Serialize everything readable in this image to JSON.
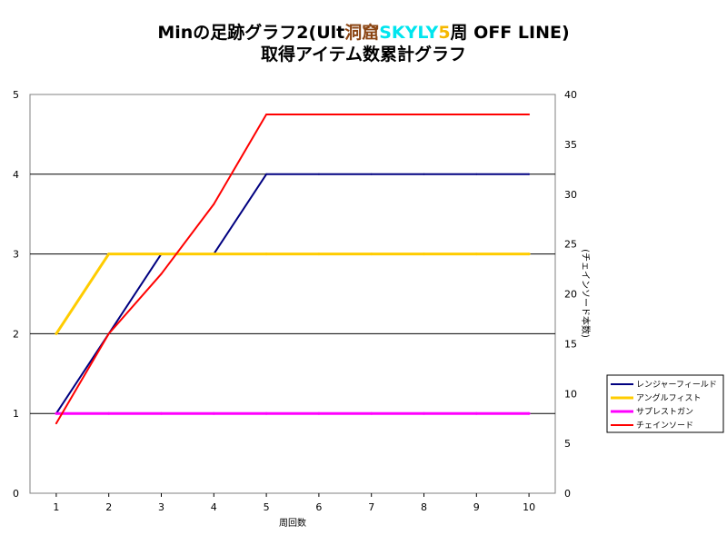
{
  "colors": {
    "title_brown": "#8b4513",
    "title_cyan": "#00e5ee",
    "title_gold": "#f5b800",
    "grid": "#000000",
    "frame": "#808080"
  },
  "chart_data": {
    "type": "line",
    "title": {
      "line1_part1": "Minの足跡グラフ2(Ult",
      "line1_part2": "洞窟",
      "line1_part3": "SKYLY",
      "line1_part4": "5",
      "line1_part5": "周 OFF LINE)",
      "line2": "取得アイテム数累計グラフ"
    },
    "xlabel": "周回数",
    "ylabel_right": "(チェインソード本数)",
    "x": [
      1,
      2,
      3,
      4,
      5,
      6,
      7,
      8,
      9,
      10
    ],
    "xlim": [
      0.5,
      10.5
    ],
    "ylim_left": [
      0,
      5
    ],
    "ylim_right": [
      0,
      40
    ],
    "yticks_left": [
      0,
      1,
      2,
      3,
      4,
      5
    ],
    "yticks_right": [
      0,
      5,
      10,
      15,
      20,
      25,
      30,
      35,
      40
    ],
    "grid_horizontal": true,
    "legend_position": "right",
    "series": [
      {
        "name": "レンジャーフィールド",
        "axis": "left",
        "color": "#000080",
        "width": 2,
        "values": [
          1,
          2,
          3,
          3,
          4,
          4,
          4,
          4,
          4,
          4
        ]
      },
      {
        "name": "アングルフィスト",
        "axis": "left",
        "color": "#ffcc00",
        "width": 3,
        "values": [
          2,
          3,
          3,
          3,
          3,
          3,
          3,
          3,
          3,
          3
        ]
      },
      {
        "name": "サプレストガン",
        "axis": "left",
        "color": "#ff00ff",
        "width": 3,
        "values": [
          1,
          1,
          1,
          1,
          1,
          1,
          1,
          1,
          1,
          1
        ]
      },
      {
        "name": "チェインソード",
        "axis": "right",
        "color": "#ff0000",
        "width": 2,
        "values": [
          7,
          16,
          22,
          29,
          38,
          38,
          38,
          38,
          38,
          38
        ]
      }
    ]
  }
}
